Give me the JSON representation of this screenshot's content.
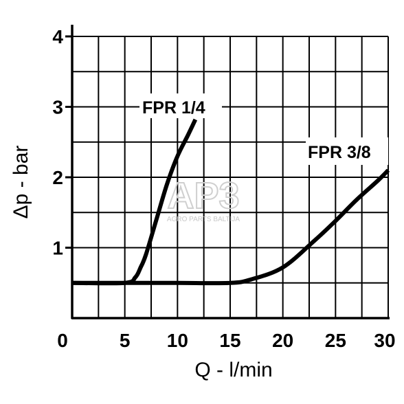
{
  "chart_data": {
    "type": "line",
    "title": "",
    "xlabel": "Q - l/min",
    "ylabel": "Δp - bar",
    "xlim": [
      0,
      30
    ],
    "ylim": [
      0,
      4
    ],
    "x_ticks": [
      "0",
      "5",
      "10",
      "15",
      "20",
      "25",
      "30"
    ],
    "y_ticks": [
      "1",
      "2",
      "3",
      "4"
    ],
    "grid": true,
    "legend": "none",
    "series": [
      {
        "name": "FPR 1/4",
        "x": [
          0,
          5,
          6,
          6.5,
          7,
          8,
          9,
          10,
          11,
          11.7
        ],
        "y": [
          0.5,
          0.5,
          0.58,
          0.72,
          0.9,
          1.4,
          1.9,
          2.3,
          2.6,
          2.82
        ]
      },
      {
        "name": "FPR 3/8",
        "x": [
          0,
          5,
          10,
          15,
          17,
          20,
          23,
          25,
          27,
          29,
          30
        ],
        "y": [
          0.5,
          0.5,
          0.5,
          0.5,
          0.55,
          0.72,
          1.1,
          1.38,
          1.68,
          1.95,
          2.1
        ]
      }
    ],
    "watermark": {
      "text": "AP3",
      "subtext": "AGRO PARTS BALTIJA"
    }
  }
}
